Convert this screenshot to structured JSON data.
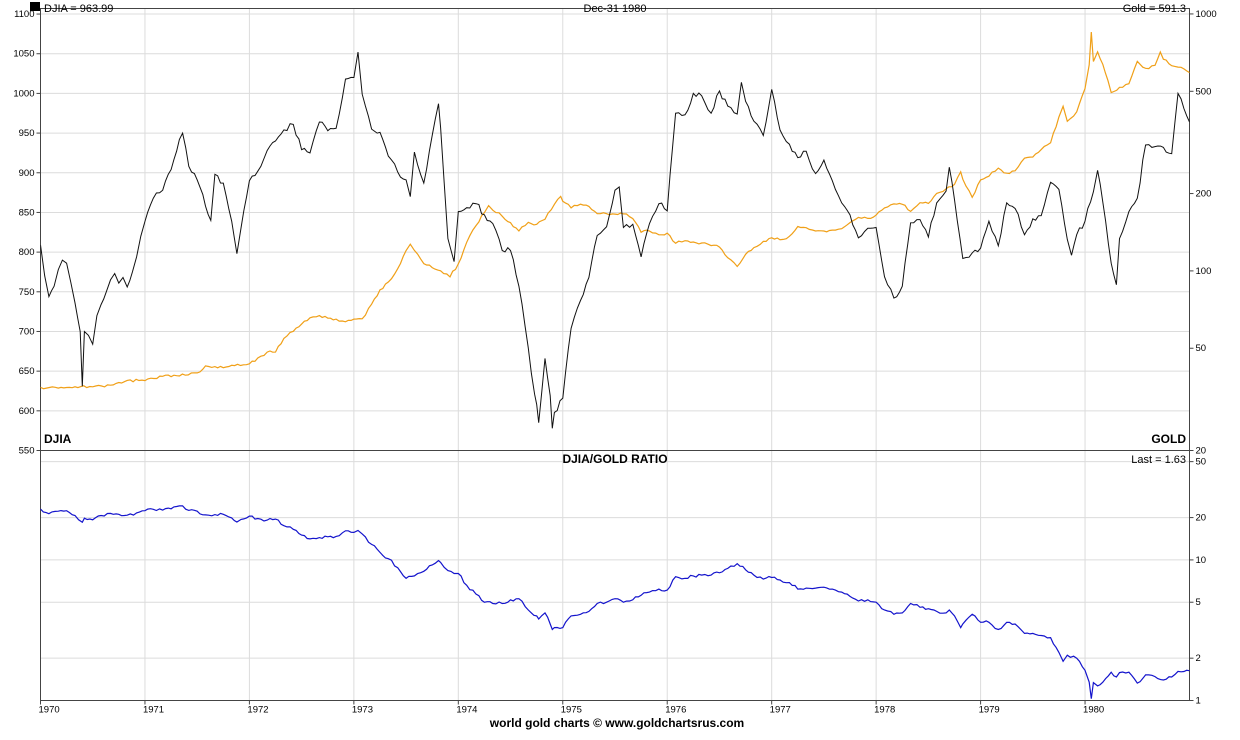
{
  "header": {
    "djia_value_label": "DJIA = 963.99",
    "date_label": "Dec-31  1980",
    "gold_value_label": "Gold = 591.3"
  },
  "top_panel": {
    "left_series_label": "DJIA",
    "right_series_label": "GOLD"
  },
  "bottom_panel": {
    "title": "DJIA/GOLD RATIO",
    "last_value_label": "Last = 1.63"
  },
  "footer": {
    "credit": "world gold charts © www.goldchartsrus.com"
  },
  "colors": {
    "djia": "#111111",
    "gold": "#f0a018",
    "ratio": "#1414cc",
    "grid": "#dcdcdc",
    "frame": "#444444"
  },
  "chart_data": [
    {
      "type": "line",
      "as_of": "Dec-31 1980",
      "xlim": [
        1970,
        1981
      ],
      "x_ticks": [
        1970,
        1971,
        1972,
        1973,
        1974,
        1975,
        1976,
        1977,
        1978,
        1979,
        1980
      ],
      "left_axis": {
        "label": "DJIA",
        "scale": "linear",
        "ylim": [
          550,
          1107
        ],
        "ticks": [
          550,
          600,
          650,
          700,
          750,
          800,
          850,
          900,
          950,
          1000,
          1050,
          1100
        ]
      },
      "right_axis": {
        "label": "GOLD",
        "scale": "log",
        "ylim": [
          20,
          1050
        ],
        "ticks": [
          20,
          50,
          100,
          200,
          500,
          1000
        ]
      },
      "series": [
        {
          "name": "DJIA",
          "axis": "left",
          "last": 963.99,
          "color": "#111111",
          "x": [
            1970.0,
            1970.04,
            1970.08,
            1970.13,
            1970.17,
            1970.21,
            1970.25,
            1970.29,
            1970.33,
            1970.38,
            1970.4,
            1970.42,
            1970.46,
            1970.5,
            1970.54,
            1970.58,
            1970.63,
            1970.67,
            1970.71,
            1970.75,
            1970.79,
            1970.83,
            1970.88,
            1970.92,
            1970.96,
            1971.0,
            1971.08,
            1971.17,
            1971.25,
            1971.33,
            1971.36,
            1971.42,
            1971.5,
            1971.58,
            1971.63,
            1971.67,
            1971.75,
            1971.83,
            1971.88,
            1971.92,
            1972.0,
            1972.08,
            1972.17,
            1972.25,
            1972.33,
            1972.42,
            1972.5,
            1972.58,
            1972.67,
            1972.75,
            1972.83,
            1972.92,
            1973.0,
            1973.04,
            1973.08,
            1973.17,
            1973.25,
            1973.33,
            1973.42,
            1973.5,
            1973.54,
            1973.58,
            1973.67,
            1973.75,
            1973.81,
            1973.83,
            1973.9,
            1973.96,
            1974.0,
            1974.08,
            1974.17,
            1974.25,
            1974.33,
            1974.42,
            1974.5,
            1974.58,
            1974.67,
            1974.73,
            1974.75,
            1974.77,
            1974.83,
            1974.88,
            1974.9,
            1974.92,
            1975.0,
            1975.08,
            1975.17,
            1975.25,
            1975.33,
            1975.42,
            1975.5,
            1975.54,
            1975.58,
            1975.67,
            1975.75,
            1975.83,
            1975.92,
            1976.0,
            1976.08,
            1976.17,
            1976.25,
            1976.33,
            1976.42,
            1976.5,
            1976.58,
            1976.67,
            1976.71,
            1976.75,
            1976.83,
            1976.92,
            1977.0,
            1977.08,
            1977.17,
            1977.25,
            1977.33,
            1977.42,
            1977.5,
            1977.58,
            1977.67,
            1977.75,
            1977.83,
            1977.92,
            1978.0,
            1978.08,
            1978.17,
            1978.25,
            1978.33,
            1978.42,
            1978.5,
            1978.58,
            1978.67,
            1978.7,
            1978.75,
            1978.83,
            1978.92,
            1979.0,
            1979.08,
            1979.17,
            1979.25,
            1979.33,
            1979.42,
            1979.5,
            1979.58,
            1979.67,
            1979.75,
            1979.83,
            1979.87,
            1979.92,
            1980.0,
            1980.08,
            1980.12,
            1980.17,
            1980.25,
            1980.3,
            1980.33,
            1980.42,
            1980.5,
            1980.58,
            1980.67,
            1980.75,
            1980.83,
            1980.89,
            1980.92,
            1981.0
          ],
          "y": [
            809,
            770,
            744,
            757,
            778,
            790,
            786,
            762,
            736,
            700,
            631,
            700,
            695,
            684,
            720,
            734,
            750,
            765,
            773,
            761,
            768,
            756,
            775,
            794,
            820,
            839,
            868,
            878,
            904,
            942,
            950,
            908,
            891,
            858,
            840,
            898,
            887,
            839,
            798,
            831,
            890,
            902,
            928,
            940,
            954,
            961,
            929,
            925,
            964,
            953,
            956,
            1018,
            1020,
            1052,
            999,
            955,
            951,
            921,
            901,
            891,
            870,
            926,
            887,
            947,
            987,
            957,
            817,
            788,
            851,
            856,
            861,
            847,
            836,
            802,
            802,
            757,
            679,
            621,
            608,
            585,
            666,
            619,
            578,
            598,
            616,
            704,
            739,
            768,
            821,
            832,
            878,
            882,
            831,
            835,
            794,
            836,
            861,
            852,
            975,
            973,
            1000,
            997,
            975,
            1003,
            984,
            974,
            1014,
            990,
            965,
            947,
            1005,
            954,
            936,
            919,
            927,
            899,
            916,
            890,
            862,
            847,
            818,
            830,
            831,
            769,
            742,
            757,
            837,
            841,
            819,
            862,
            877,
            907,
            866,
            792,
            799,
            805,
            839,
            808,
            862,
            855,
            822,
            842,
            846,
            888,
            879,
            816,
            796,
            822,
            839,
            876,
            903,
            863,
            786,
            759,
            817,
            851,
            868,
            935,
            933,
            932,
            924,
            1000,
            993,
            964
          ]
        },
        {
          "name": "GOLD",
          "axis": "right",
          "last": 591.3,
          "color": "#f0a018",
          "x": [
            1970.0,
            1970.17,
            1970.33,
            1970.5,
            1970.67,
            1970.83,
            1971.0,
            1971.17,
            1971.33,
            1971.5,
            1971.58,
            1971.67,
            1971.75,
            1971.83,
            1972.0,
            1972.08,
            1972.17,
            1972.25,
            1972.33,
            1972.42,
            1972.5,
            1972.58,
            1972.67,
            1972.75,
            1972.83,
            1972.92,
            1973.0,
            1973.08,
            1973.17,
            1973.25,
            1973.33,
            1973.42,
            1973.5,
            1973.54,
            1973.58,
            1973.67,
            1973.75,
            1973.83,
            1973.92,
            1974.0,
            1974.08,
            1974.17,
            1974.25,
            1974.29,
            1974.33,
            1974.42,
            1974.5,
            1974.58,
            1974.67,
            1974.75,
            1974.83,
            1974.92,
            1974.98,
            1975.0,
            1975.08,
            1975.17,
            1975.25,
            1975.33,
            1975.42,
            1975.5,
            1975.58,
            1975.67,
            1975.75,
            1975.83,
            1975.92,
            1976.0,
            1976.08,
            1976.17,
            1976.25,
            1976.33,
            1976.42,
            1976.5,
            1976.58,
            1976.67,
            1976.75,
            1976.83,
            1976.92,
            1977.0,
            1977.08,
            1977.17,
            1977.25,
            1977.33,
            1977.42,
            1977.5,
            1977.58,
            1977.67,
            1977.75,
            1977.83,
            1977.92,
            1978.0,
            1978.08,
            1978.17,
            1978.25,
            1978.33,
            1978.42,
            1978.5,
            1978.58,
            1978.67,
            1978.75,
            1978.81,
            1978.83,
            1978.92,
            1979.0,
            1979.08,
            1979.17,
            1979.25,
            1979.33,
            1979.42,
            1979.5,
            1979.58,
            1979.67,
            1979.75,
            1979.79,
            1979.83,
            1979.92,
            1980.0,
            1980.04,
            1980.06,
            1980.08,
            1980.12,
            1980.17,
            1980.22,
            1980.25,
            1980.33,
            1980.42,
            1980.5,
            1980.58,
            1980.67,
            1980.72,
            1980.75,
            1980.83,
            1980.92,
            1981.0
          ],
          "y": [
            35.2,
            35.0,
            35.4,
            35.4,
            35.9,
            37.5,
            37.4,
            38.9,
            39.0,
            40.1,
            42.7,
            42.4,
            42.0,
            42.9,
            43.5,
            45.8,
            48.3,
            48.3,
            54.6,
            58.2,
            62.1,
            65.7,
            67.0,
            65.5,
            64.9,
            63.4,
            64.9,
            65.1,
            74.2,
            84.4,
            90.5,
            102.0,
            120.1,
            127.0,
            120.2,
            106.8,
            103.0,
            100.1,
            94.8,
            106.5,
            129.2,
            150.2,
            168.4,
            179.5,
            172.2,
            163.3,
            154.1,
            143.0,
            154.6,
            151.8,
            158.8,
            181.7,
            195.0,
            186.5,
            175.8,
            181.8,
            178.2,
            167.0,
            167.0,
            166.3,
            166.7,
            159.8,
            141.3,
            142.9,
            138.2,
            140.3,
            128.2,
            131.1,
            129.6,
            128.4,
            125.5,
            123.8,
            112.5,
            104.0,
            116.0,
            123.2,
            130.3,
            134.5,
            132.3,
            136.3,
            148.9,
            147.3,
            143.0,
            143.0,
            144.1,
            146.0,
            154.1,
            161.5,
            160.1,
            164.9,
            175.8,
            182.3,
            181.6,
            170.4,
            184.2,
            183.1,
            200.3,
            208.7,
            217.1,
            243.0,
            227.4,
            193.4,
            226.0,
            233.7,
            251.3,
            240.1,
            245.3,
            274.6,
            277.5,
            296.5,
            315.1,
            397.3,
            437.0,
            382.0,
            415.7,
            512.0,
            634.0,
            850.0,
            653.0,
            712.0,
            637.0,
            550.0,
            494.0,
            518.0,
            535.0,
            653.5,
            614.3,
            631.3,
            711.0,
            666.8,
            629.0,
            619.8,
            591.3
          ]
        }
      ]
    },
    {
      "type": "line",
      "title": "DJIA/GOLD RATIO",
      "xlim": [
        1970,
        1981
      ],
      "right_axis": {
        "scale": "log",
        "ylim": [
          1,
          60
        ],
        "ticks": [
          1,
          2,
          5,
          10,
          20,
          50
        ]
      },
      "series": [
        {
          "name": "DJIA/GOLD RATIO",
          "axis": "right",
          "last": 1.63,
          "color": "#1414cc",
          "x": [
            1970.0,
            1970.08,
            1970.17,
            1970.25,
            1970.33,
            1970.4,
            1970.42,
            1970.5,
            1970.58,
            1970.67,
            1970.75,
            1970.83,
            1970.92,
            1971.0,
            1971.08,
            1971.17,
            1971.25,
            1971.33,
            1971.42,
            1971.5,
            1971.58,
            1971.67,
            1971.75,
            1971.83,
            1971.88,
            1971.92,
            1972.0,
            1972.08,
            1972.17,
            1972.25,
            1972.33,
            1972.42,
            1972.5,
            1972.58,
            1972.67,
            1972.75,
            1972.83,
            1972.92,
            1973.0,
            1973.04,
            1973.08,
            1973.17,
            1973.25,
            1973.33,
            1973.42,
            1973.5,
            1973.58,
            1973.67,
            1973.75,
            1973.81,
            1973.83,
            1973.9,
            1973.96,
            1974.0,
            1974.08,
            1974.17,
            1974.25,
            1974.33,
            1974.42,
            1974.5,
            1974.58,
            1974.67,
            1974.75,
            1974.77,
            1974.83,
            1974.88,
            1974.9,
            1974.92,
            1975.0,
            1975.08,
            1975.17,
            1975.25,
            1975.33,
            1975.42,
            1975.5,
            1975.58,
            1975.67,
            1975.75,
            1975.83,
            1975.92,
            1976.0,
            1976.08,
            1976.17,
            1976.25,
            1976.33,
            1976.42,
            1976.5,
            1976.58,
            1976.67,
            1976.75,
            1976.83,
            1976.92,
            1977.0,
            1977.08,
            1977.17,
            1977.25,
            1977.33,
            1977.42,
            1977.5,
            1977.58,
            1977.67,
            1977.75,
            1977.83,
            1977.92,
            1978.0,
            1978.08,
            1978.17,
            1978.25,
            1978.33,
            1978.42,
            1978.5,
            1978.58,
            1978.67,
            1978.7,
            1978.75,
            1978.81,
            1978.83,
            1978.92,
            1979.0,
            1979.08,
            1979.17,
            1979.25,
            1979.33,
            1979.42,
            1979.5,
            1979.58,
            1979.67,
            1979.75,
            1979.79,
            1979.83,
            1979.92,
            1980.0,
            1980.04,
            1980.06,
            1980.08,
            1980.12,
            1980.17,
            1980.25,
            1980.3,
            1980.33,
            1980.42,
            1980.5,
            1980.58,
            1980.67,
            1980.75,
            1980.83,
            1980.89,
            1980.92,
            1981.0
          ],
          "y": [
            23.0,
            21.3,
            22.2,
            22.4,
            20.7,
            18.5,
            19.8,
            19.3,
            20.7,
            21.4,
            21.1,
            20.8,
            21.6,
            22.4,
            22.9,
            22.6,
            23.1,
            24.2,
            22.5,
            22.2,
            20.9,
            21.0,
            21.1,
            19.9,
            18.6,
            19.4,
            20.5,
            19.7,
            19.2,
            19.5,
            17.5,
            16.5,
            15.0,
            14.1,
            14.4,
            14.6,
            14.7,
            16.1,
            15.7,
            16.2,
            15.3,
            12.9,
            11.3,
            10.2,
            8.8,
            7.4,
            7.7,
            8.3,
            9.2,
            9.9,
            9.6,
            8.4,
            8.0,
            8.0,
            6.6,
            5.7,
            5.0,
            4.9,
            4.9,
            5.2,
            5.3,
            4.4,
            4.0,
            3.8,
            4.2,
            3.5,
            3.2,
            3.3,
            3.3,
            4.0,
            4.1,
            4.3,
            4.9,
            5.0,
            5.3,
            5.0,
            5.2,
            5.6,
            5.9,
            6.2,
            6.1,
            7.6,
            7.4,
            7.7,
            7.8,
            7.8,
            8.1,
            8.7,
            9.4,
            8.5,
            7.8,
            7.3,
            7.5,
            7.2,
            6.9,
            6.2,
            6.3,
            6.3,
            6.4,
            6.2,
            5.9,
            5.5,
            5.1,
            5.2,
            5.0,
            4.4,
            4.1,
            4.2,
            4.9,
            4.6,
            4.5,
            4.3,
            4.2,
            4.4,
            4.0,
            3.3,
            3.5,
            4.1,
            3.6,
            3.6,
            3.2,
            3.6,
            3.5,
            3.0,
            3.0,
            2.9,
            2.8,
            2.2,
            1.9,
            2.1,
            2.0,
            1.64,
            1.35,
            1.03,
            1.34,
            1.27,
            1.35,
            1.59,
            1.47,
            1.58,
            1.59,
            1.33,
            1.52,
            1.48,
            1.4,
            1.47,
            1.61,
            1.6,
            1.63
          ]
        }
      ]
    }
  ]
}
